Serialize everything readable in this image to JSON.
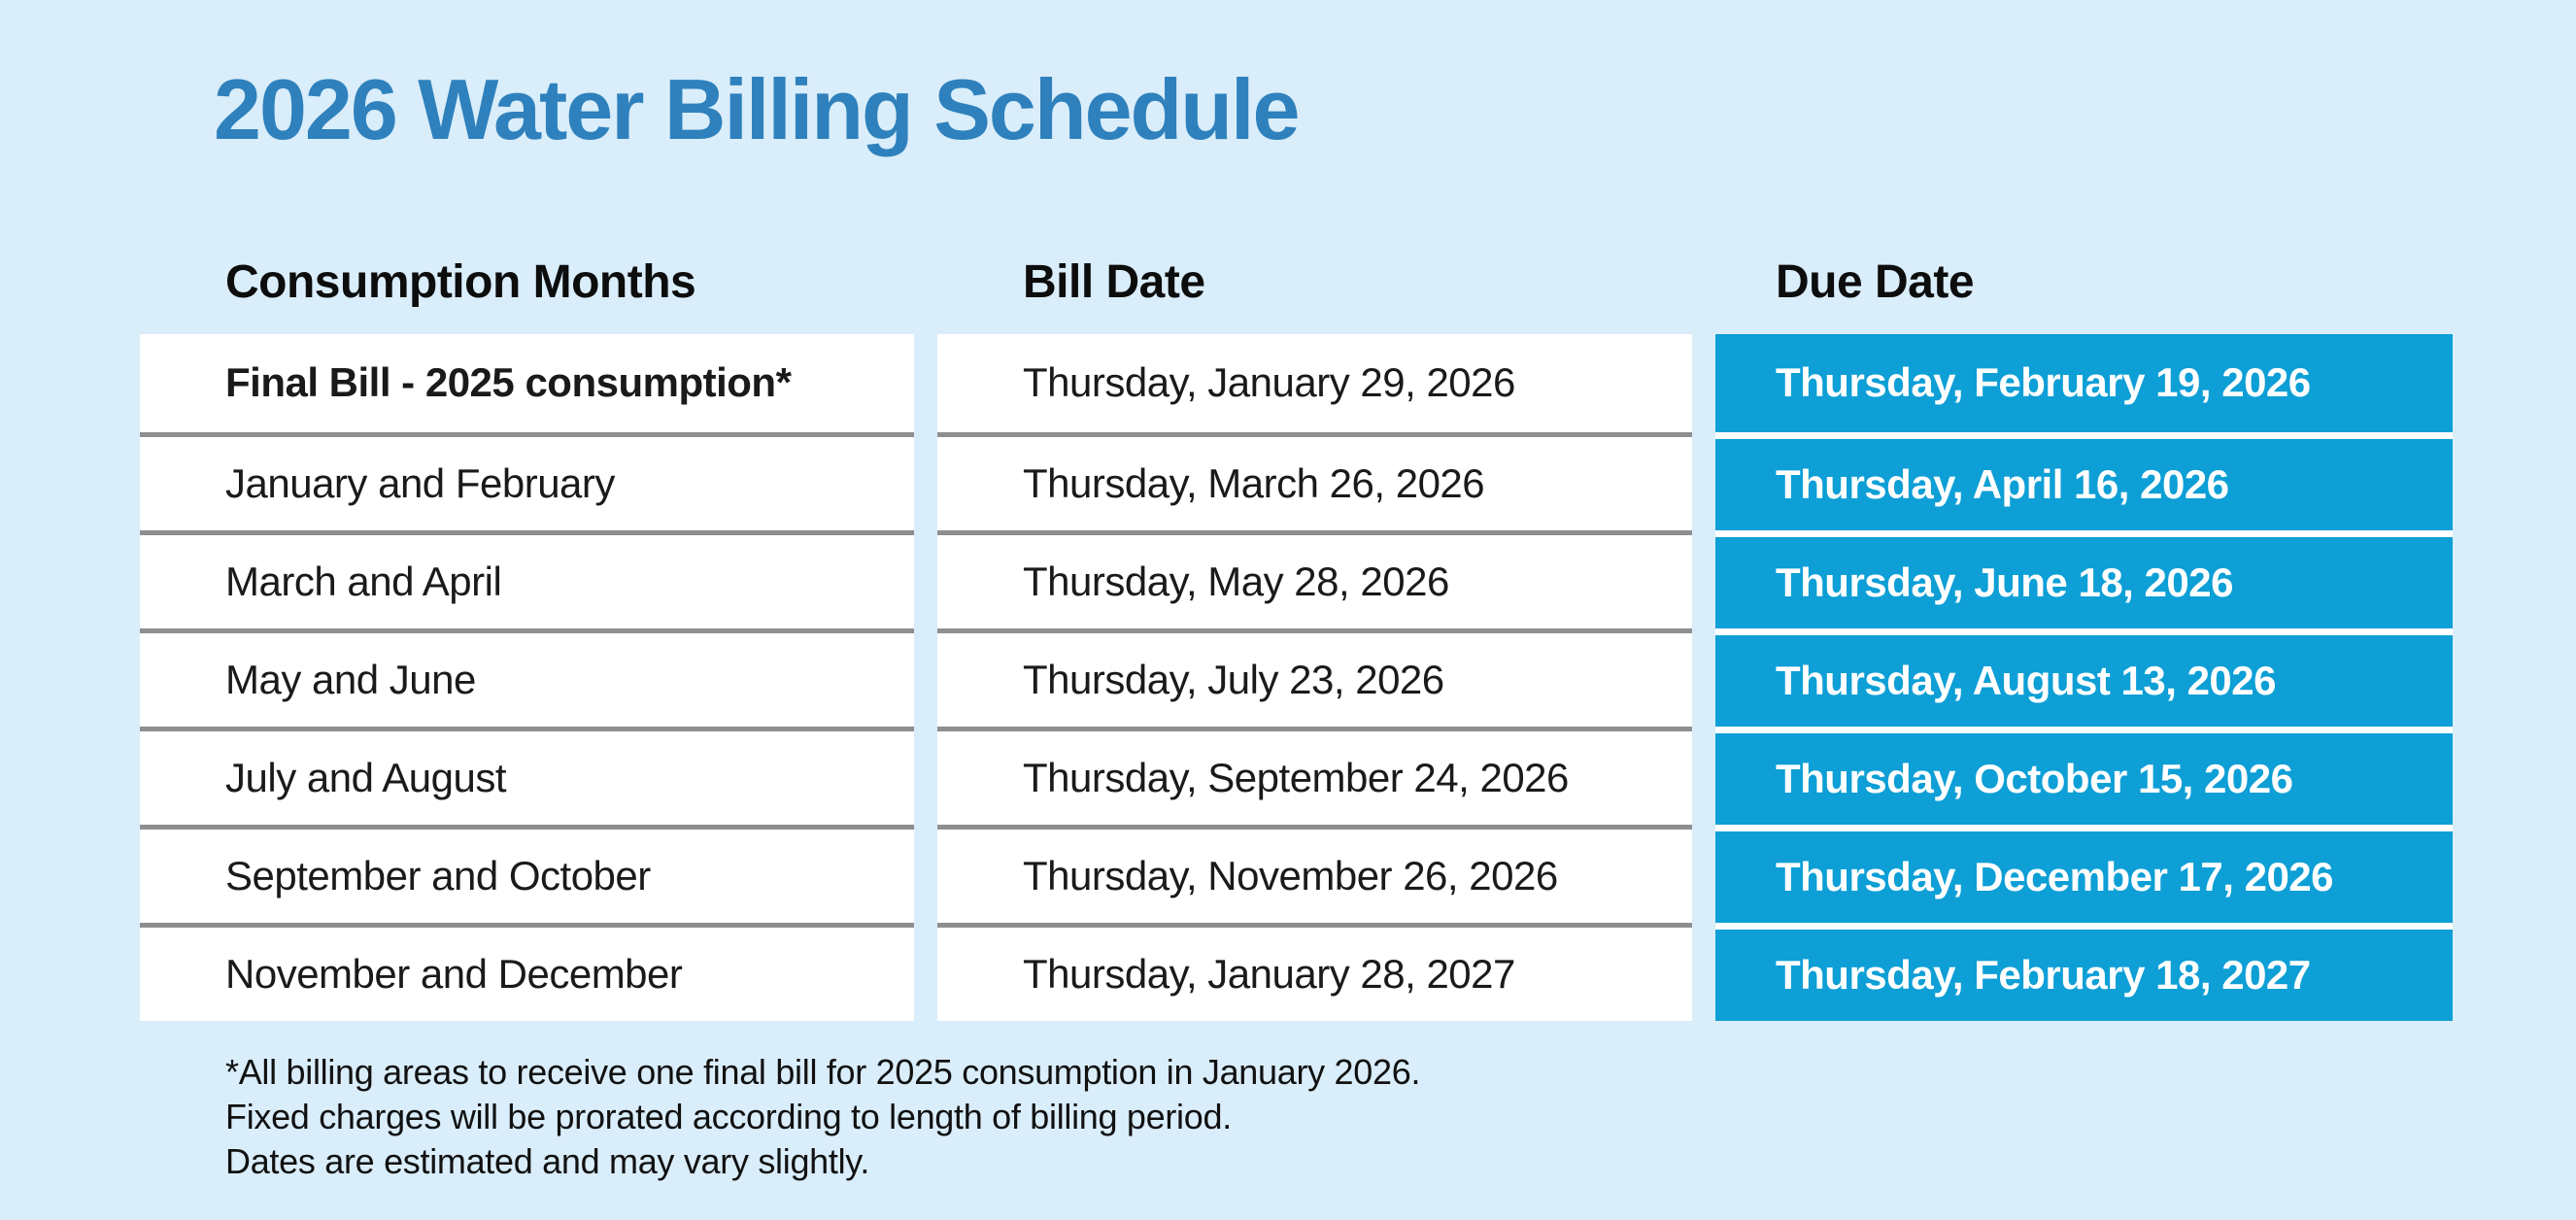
{
  "page": {
    "background_color": "#D9EDFA"
  },
  "title": {
    "text": "2026 Water Billing Schedule",
    "color": "#2E81BC"
  },
  "table": {
    "columns": [
      {
        "key": "consumption",
        "label": "Consumption Months"
      },
      {
        "key": "bill",
        "label": "Bill Date"
      },
      {
        "key": "due",
        "label": "Due Date"
      }
    ],
    "colors": {
      "row_background": "#FFFFFF",
      "due_cell_background": "#0D9FD6",
      "due_cell_text": "#FFFFFF",
      "divider_gray": "#8E8E90",
      "divider_white": "#FFFFFF"
    },
    "rows": [
      {
        "consumption": "Final Bill - 2025 consumption*",
        "consumption_bold": true,
        "bill": "Thursday, January 29, 2026",
        "due": "Thursday, February 19, 2026"
      },
      {
        "consumption": "January and February",
        "consumption_bold": false,
        "bill": "Thursday, March 26, 2026",
        "due": "Thursday, April 16, 2026"
      },
      {
        "consumption": "March and April",
        "consumption_bold": false,
        "bill": "Thursday, May 28, 2026",
        "due": "Thursday, June 18, 2026"
      },
      {
        "consumption": "May and June",
        "consumption_bold": false,
        "bill": "Thursday, July 23, 2026",
        "due": "Thursday, August 13, 2026"
      },
      {
        "consumption": "July and August",
        "consumption_bold": false,
        "bill": "Thursday, September 24, 2026",
        "due": "Thursday, October 15, 2026"
      },
      {
        "consumption": "September and October",
        "consumption_bold": false,
        "bill": "Thursday, November 26, 2026",
        "due": "Thursday, December 17, 2026"
      },
      {
        "consumption": "November and December",
        "consumption_bold": false,
        "bill": "Thursday, January 28, 2027",
        "due": "Thursday, February 18, 2027"
      }
    ]
  },
  "footnotes": [
    "*All billing areas to receive one final bill for 2025 consumption in January 2026.",
    "Fixed charges will be prorated according to length of billing period.",
    "Dates are estimated and may vary slightly."
  ]
}
